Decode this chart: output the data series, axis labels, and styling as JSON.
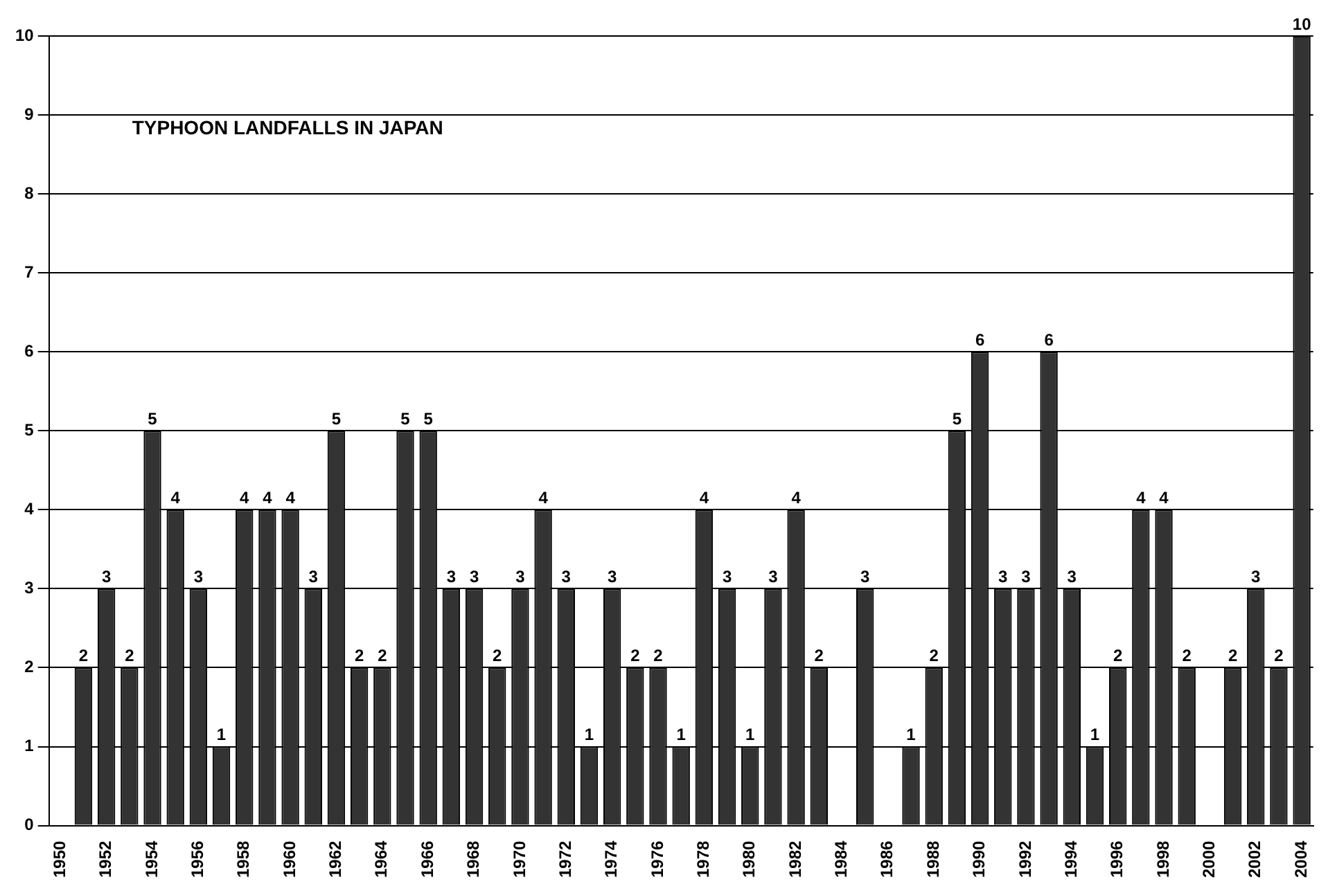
{
  "chart_data": {
    "type": "bar",
    "title": "TYPHOON LANDFALLS IN JAPAN",
    "categories": [
      "1950",
      null,
      "1952",
      null,
      "1954",
      null,
      "1956",
      null,
      "1958",
      null,
      "1960",
      null,
      "1962",
      null,
      "1964",
      null,
      "1966",
      null,
      "1968",
      null,
      "1970",
      null,
      "1972",
      null,
      "1974",
      null,
      "1976",
      null,
      "1978",
      null,
      "1980",
      null,
      "1982",
      null,
      "1984",
      null,
      "1986",
      null,
      "1988",
      null,
      "1990",
      null,
      "1992",
      null,
      "1994",
      null,
      "1996",
      null,
      "1998",
      null,
      "2000",
      null,
      "2002",
      null,
      "2004"
    ],
    "values": [
      0,
      2,
      3,
      2,
      5,
      4,
      3,
      1,
      4,
      4,
      4,
      3,
      5,
      2,
      2,
      5,
      5,
      3,
      3,
      2,
      3,
      4,
      3,
      1,
      3,
      2,
      2,
      1,
      4,
      3,
      1,
      3,
      4,
      2,
      0,
      3,
      0,
      1,
      2,
      5,
      6,
      3,
      3,
      6,
      3,
      1,
      2,
      4,
      4,
      2,
      0,
      2,
      3,
      2,
      10
    ],
    "value_labels": [
      null,
      "2",
      "3",
      "2",
      "5",
      "4",
      "3",
      "1",
      "4",
      "4",
      "4",
      "3",
      "5",
      "2",
      "2",
      "5",
      "5",
      "3",
      "3",
      "2",
      "3",
      "4",
      "3",
      "1",
      "3",
      "2",
      "2",
      "1",
      "4",
      "3",
      "1",
      "3",
      "4",
      "2",
      null,
      "3",
      null,
      "1",
      "2",
      "5",
      "6",
      "3",
      "3",
      "6",
      "3",
      "1",
      "2",
      "4",
      "4",
      "2",
      null,
      "2",
      "3",
      "2",
      "10"
    ],
    "color": "#333333",
    "ylim": [
      0,
      10
    ],
    "yticks": [
      0,
      1,
      2,
      3,
      4,
      5,
      6,
      7,
      8,
      9,
      10
    ],
    "grid": "y",
    "legend": false
  }
}
